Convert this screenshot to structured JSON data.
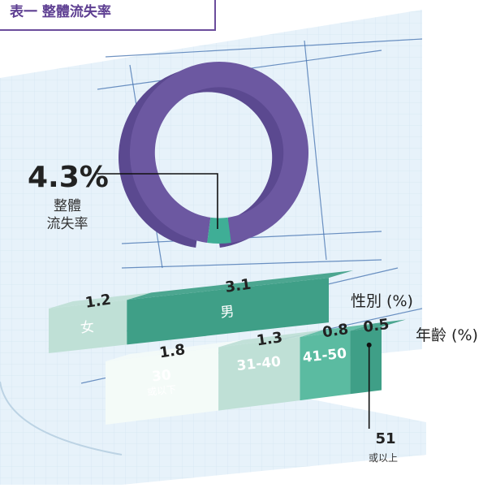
{
  "title": "表一 整體流失率",
  "overall": {
    "value": "4.3%",
    "label_line1": "整體",
    "label_line2": "流失率",
    "value_num": 4.3
  },
  "legend": {
    "gender": "性別 (%)",
    "age": "年齡 (%)"
  },
  "colors": {
    "ring": "#6c58a1",
    "ring_side": "#5b4990",
    "ring_highlight": "#3fae96",
    "dark_green": "#3f9f87",
    "mid_green": "#5bbba1",
    "light_green": "#bfe0d6",
    "pale": "#f4fbf8",
    "grid": "#d3e5f1"
  },
  "chart_data": [
    {
      "type": "pie",
      "title": "整體流失率",
      "values": [
        4.3,
        95.7
      ],
      "labels": [
        "4.3%",
        ""
      ]
    },
    {
      "type": "bar",
      "title": "性別 (%)",
      "categories": [
        "女",
        "男"
      ],
      "values": [
        1.2,
        3.1
      ],
      "value_labels": [
        "1.2",
        "3.1"
      ]
    },
    {
      "type": "bar",
      "title": "年齡 (%)",
      "categories": [
        "30 或以下",
        "31-40",
        "41-50",
        "51 或以上"
      ],
      "values": [
        1.8,
        1.3,
        0.8,
        0.5
      ],
      "value_labels": [
        "1.8",
        "1.3",
        "0.8",
        "0.5"
      ],
      "category_main": [
        "30",
        "31-40",
        "41-50",
        "51"
      ],
      "category_sub": [
        "或以下",
        "",
        "",
        "或以上"
      ]
    }
  ]
}
